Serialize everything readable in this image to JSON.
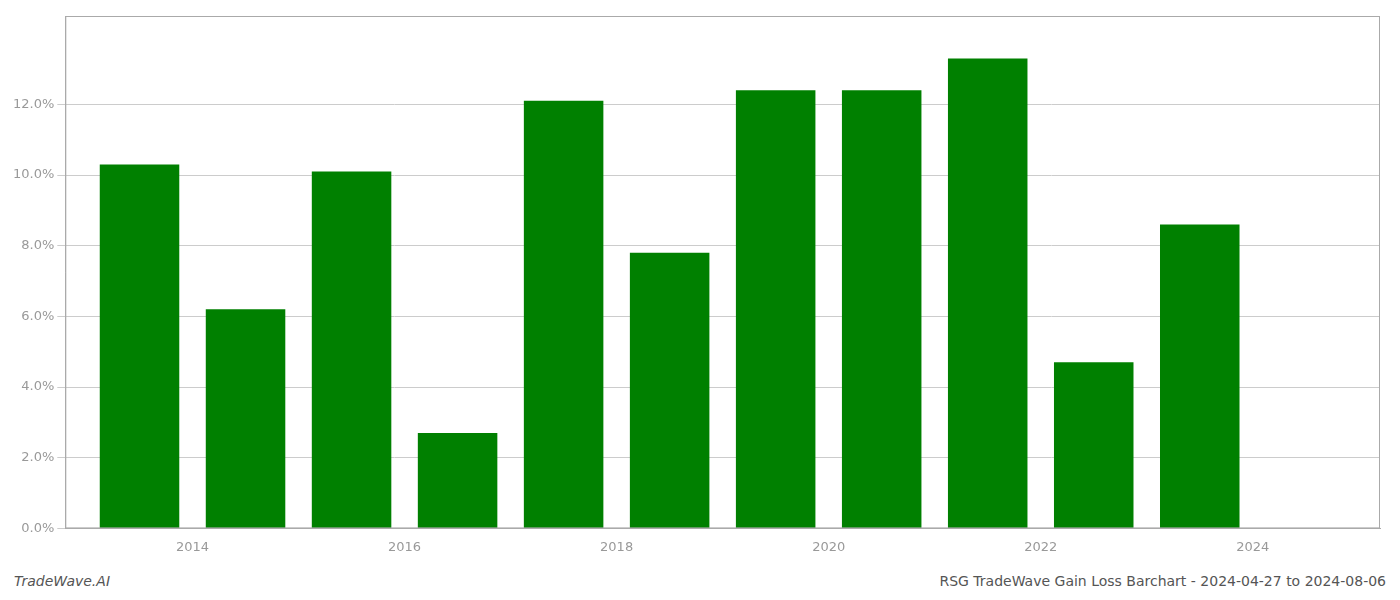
{
  "chart_data": {
    "type": "bar",
    "x": [
      2013.5,
      2014.5,
      2015.5,
      2016.5,
      2017.5,
      2018.5,
      2019.5,
      2020.5,
      2021.5,
      2022.5,
      2023.5
    ],
    "values": [
      0.103,
      0.062,
      0.101,
      0.027,
      0.121,
      0.078,
      0.124,
      0.124,
      0.133,
      0.047,
      0.086
    ],
    "color": "#008000",
    "xlim": [
      2012.8,
      2025.2
    ],
    "xticks": [
      2014,
      2016,
      2018,
      2020,
      2022,
      2024
    ],
    "ylim": [
      0,
      0.145
    ],
    "yticks": [
      {
        "value": 0.0,
        "label": "0.0%"
      },
      {
        "value": 0.02,
        "label": "2.0%"
      },
      {
        "value": 0.04,
        "label": "4.0%"
      },
      {
        "value": 0.06,
        "label": "6.0%"
      },
      {
        "value": 0.08,
        "label": "8.0%"
      },
      {
        "value": 0.1,
        "label": "10.0%"
      },
      {
        "value": 0.12,
        "label": "12.0%"
      }
    ],
    "grid": true,
    "annotations": [
      "TradeWave.AI",
      "RSG TradeWave Gain Loss Barchart - 2024-04-27 to 2024-08-06"
    ]
  }
}
